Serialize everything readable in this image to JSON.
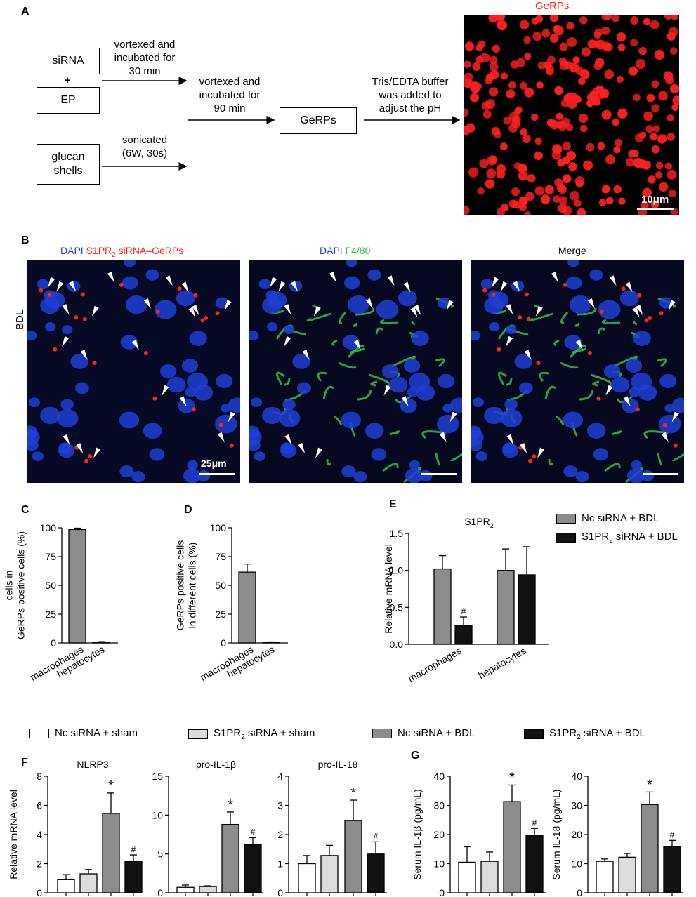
{
  "panels": {
    "A": "A",
    "B": "B",
    "C": "C",
    "D": "D",
    "E": "E",
    "F": "F",
    "G": "G"
  },
  "flow": {
    "box_sirna": "siRNA",
    "plus": "+",
    "box_ep": "EP",
    "box_glucan_1": "glucan",
    "box_glucan_2": "shells",
    "box_gerps": "GeRPs",
    "step1": [
      "vortexed and",
      "incubated for",
      "30 min"
    ],
    "step2": [
      "sonicated",
      "(6W, 30s)"
    ],
    "step3": [
      "vortexed and",
      "incubated for",
      "90 min"
    ],
    "step4": [
      "Tris/EDTA buffer",
      "was added to",
      "adjust the pH"
    ],
    "image_title": "GeRPs",
    "image_scale": "10μm"
  },
  "panelB": {
    "row_label": "BDL",
    "title1_dapi": "DAPI",
    "title1_rest": "S1PR",
    "title1_sub": "2",
    "title1_tail": " siRNA–GeRPs",
    "title2_dapi": "DAPI",
    "title2_f480": "F4/80",
    "title3": "Merge",
    "scale": "25μm"
  },
  "colors": {
    "grey": "#8c8c8c",
    "black": "#111111",
    "white": "#ffffff",
    "lightgrey": "#dcdcdc",
    "dapi": "#1f3fd6",
    "f480": "#2fc04a",
    "gerp": "#ff2020"
  },
  "legendE": {
    "nc": "Nc siRNA + BDL",
    "s1": "S1PR",
    "s1_sub": "2",
    "s1_tail": " siRNA + BDL"
  },
  "legendF": {
    "a": "Nc siRNA + sham",
    "b_pre": "S1PR",
    "b_sub": "2",
    "b_tail": " siRNA + sham",
    "c": "Nc siRNA + BDL",
    "d_pre": "S1PR",
    "d_sub": "2",
    "d_tail": " siRNA + BDL"
  },
  "chart_data": [
    {
      "panel": "C",
      "type": "bar",
      "ylabel": [
        "cells in",
        "GeRPs positive cells (%)"
      ],
      "categories": [
        "macrophages",
        "hepatocytes"
      ],
      "values": [
        98.5,
        0.8
      ],
      "errors": [
        1.2,
        0.3
      ],
      "ylim": [
        0,
        100
      ],
      "yticks": [
        0,
        25,
        50,
        75,
        100
      ]
    },
    {
      "panel": "D",
      "type": "bar",
      "ylabel": [
        "GeRPs positive cells",
        "in different cells (%)"
      ],
      "categories": [
        "macrophages",
        "hepatocytes"
      ],
      "values": [
        61.5,
        0.6
      ],
      "errors": [
        7,
        0.3
      ],
      "ylim": [
        0,
        100
      ],
      "yticks": [
        0,
        25,
        50,
        75,
        100
      ]
    },
    {
      "panel": "E",
      "type": "bar",
      "title": "S1PR",
      "title_sub": "2",
      "ylabel": [
        "Relative mRNA level"
      ],
      "categories": [
        "macrophages",
        "hepatocytes"
      ],
      "series": [
        {
          "name": "Nc siRNA + BDL",
          "values": [
            1.02,
            1.0
          ],
          "errors": [
            0.18,
            0.29
          ]
        },
        {
          "name": "S1PR2 siRNA + BDL",
          "values": [
            0.25,
            0.94
          ],
          "errors": [
            0.12,
            0.38
          ]
        }
      ],
      "marks": [
        "",
        "#",
        "",
        ""
      ],
      "ylim": [
        0,
        1.5
      ],
      "yticks": [
        "0.0",
        "0.5",
        "1.0",
        "1.5"
      ]
    },
    {
      "panel": "F1",
      "type": "bar",
      "title": "NLRP3",
      "ylabel": [
        "Relative mRNA level"
      ],
      "values": [
        0.9,
        1.3,
        5.45,
        2.15
      ],
      "errors": [
        0.35,
        0.3,
        1.4,
        0.45
      ],
      "marks": [
        "",
        "",
        "*",
        "#"
      ],
      "ylim": [
        0,
        8
      ],
      "yticks": [
        "0",
        "2",
        "4",
        "6",
        "8"
      ]
    },
    {
      "panel": "F2",
      "type": "bar",
      "title": "pro-IL-1β",
      "values": [
        0.7,
        0.8,
        8.8,
        6.2
      ],
      "errors": [
        0.3,
        0.1,
        1.6,
        0.9
      ],
      "marks": [
        "",
        "",
        "*",
        "#"
      ],
      "ylim": [
        0,
        15
      ],
      "yticks": [
        "0",
        "5",
        "10",
        "15"
      ]
    },
    {
      "panel": "F3",
      "type": "bar",
      "title": "pro-IL-18",
      "values": [
        1.0,
        1.28,
        2.48,
        1.33
      ],
      "errors": [
        0.28,
        0.35,
        0.7,
        0.42
      ],
      "marks": [
        "",
        "",
        "*",
        "#"
      ],
      "ylim": [
        0,
        4
      ],
      "yticks": [
        "0",
        "1",
        "2",
        "3",
        "4"
      ]
    },
    {
      "panel": "G1",
      "type": "bar",
      "ylabel": [
        "Serum IL-1β (pg/mL)"
      ],
      "values": [
        10.5,
        10.8,
        31.3,
        19.8
      ],
      "errors": [
        5.3,
        3.2,
        5.7,
        2.3
      ],
      "marks": [
        "",
        "",
        "*",
        "#"
      ],
      "ylim": [
        0,
        40
      ],
      "yticks": [
        "0",
        "10",
        "20",
        "30",
        "40"
      ]
    },
    {
      "panel": "G2",
      "type": "bar",
      "ylabel": [
        "Serum IL-18 (pg/mL)"
      ],
      "values": [
        10.8,
        12.2,
        30.3,
        15.8
      ],
      "errors": [
        0.8,
        1.3,
        4.3,
        2.2
      ],
      "marks": [
        "",
        "",
        "*",
        "#"
      ],
      "ylim": [
        0,
        40
      ],
      "yticks": [
        "0",
        "10",
        "20",
        "30",
        "40"
      ]
    }
  ]
}
